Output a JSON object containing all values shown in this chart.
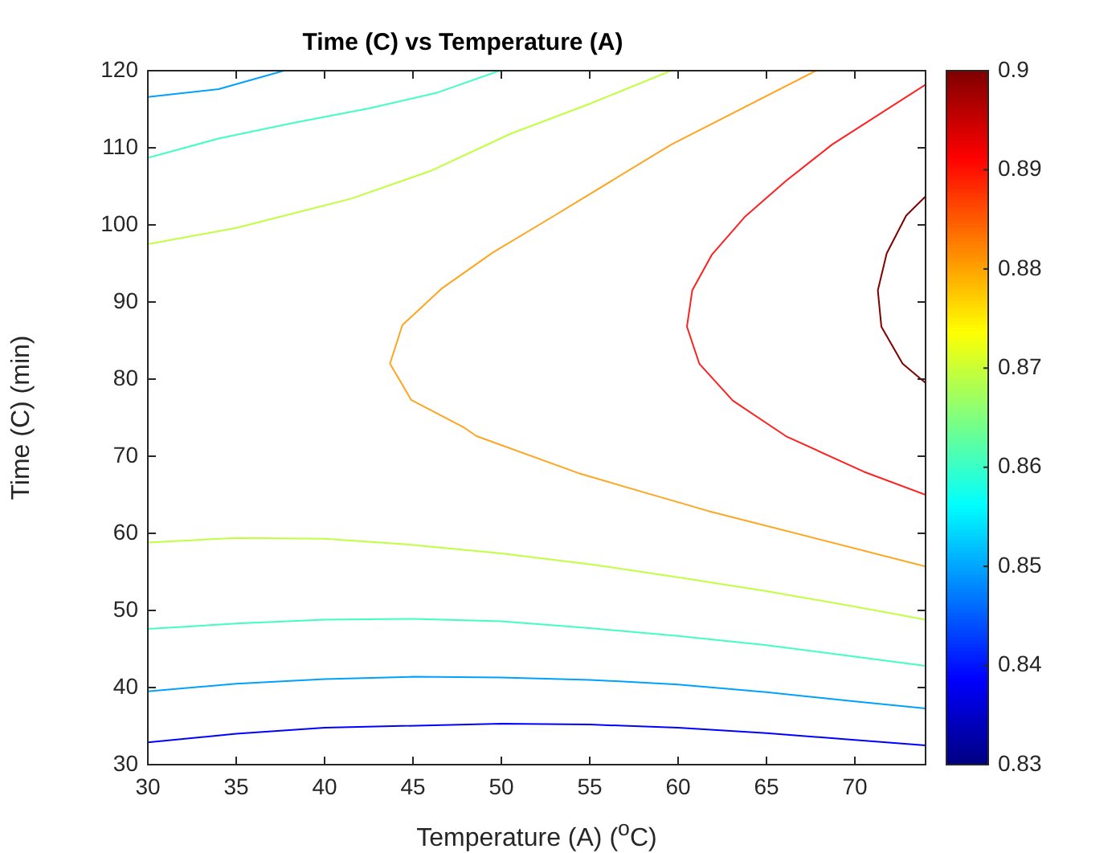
{
  "chart_data": {
    "type": "line",
    "title": "Time (C) vs Temperature (A)",
    "xlabel": "Temperature (A) ($^{o}$C)",
    "ylabel": "Time (C) (min)",
    "xlim": [
      30,
      74
    ],
    "xticks": [
      30,
      35,
      40,
      45,
      50,
      55,
      60,
      65,
      70
    ],
    "ylim": [
      30,
      120
    ],
    "yticks": [
      30,
      40,
      50,
      60,
      70,
      80,
      90,
      100,
      110,
      120
    ],
    "clim": [
      0.83,
      0.9
    ],
    "cticks": [
      0.83,
      0.84,
      0.85,
      0.86,
      0.87,
      0.88,
      0.89,
      0.9
    ],
    "grid": false,
    "legend": false,
    "marker": "none",
    "series": [
      {
        "color": "#0000ff",
        "x": [
          30,
          35,
          40,
          50,
          55,
          60,
          65,
          70,
          74
        ],
        "values": [
          32.9,
          34.0,
          34.8,
          35.3,
          35.2,
          34.8,
          34.1,
          33.2,
          32.5
        ]
      },
      {
        "color": "#00a0ff",
        "x": [
          30,
          35,
          40,
          45,
          50,
          55,
          60,
          65,
          70,
          74
        ],
        "values": [
          39.5,
          40.5,
          41.1,
          41.4,
          41.3,
          41.0,
          40.4,
          39.4,
          38.2,
          37.3
        ]
      },
      {
        "color": "#00a0ff",
        "x": [
          30,
          34,
          37.7
        ],
        "values": [
          116.6,
          117.6,
          120
        ]
      },
      {
        "color": "#40ffc0",
        "x": [
          30,
          35,
          40,
          45,
          50,
          55,
          60,
          65,
          70,
          74
        ],
        "values": [
          47.6,
          48.3,
          48.8,
          48.9,
          48.6,
          47.7,
          46.7,
          45.5,
          44.0,
          42.8
        ]
      },
      {
        "color": "#40ffc0",
        "x": [
          30,
          34,
          38.4,
          42.5,
          46.3,
          49.9
        ],
        "values": [
          108.7,
          111.2,
          113.3,
          115.1,
          117.1,
          120
        ]
      },
      {
        "color": "#c0ff40",
        "x": [
          30,
          35,
          40,
          45,
          50,
          55,
          60,
          65,
          70,
          74
        ],
        "values": [
          58.8,
          59.4,
          59.3,
          58.5,
          57.4,
          56.0,
          54.3,
          52.5,
          50.5,
          48.8
        ]
      },
      {
        "color": "#c0ff40",
        "x": [
          30,
          35,
          41.5,
          46,
          50.5,
          55,
          59.6
        ],
        "values": [
          97.5,
          99.6,
          103.4,
          107.0,
          111.8,
          115.7,
          120
        ]
      },
      {
        "color": "#ffa520",
        "x": [
          67.8,
          59.6,
          53,
          49.5,
          46.6,
          44.4,
          43.7,
          44.9,
          47.9,
          48.6,
          54.5,
          61.7,
          74
        ],
        "values": [
          120,
          110.4,
          101.2,
          96.4,
          91.7,
          87.0,
          82.0,
          77.3,
          73.7,
          72.6,
          67.7,
          62.9,
          55.7
        ]
      },
      {
        "color": "#ff2020",
        "x": [
          74,
          68.7,
          66.1,
          63.8,
          61.9,
          60.8,
          60.5,
          61.2,
          63.1,
          66.1,
          70.5,
          74
        ],
        "values": [
          118.2,
          110.4,
          105.7,
          101.1,
          96.1,
          91.5,
          86.8,
          82.0,
          77.2,
          72.6,
          68.0,
          65.0
        ]
      },
      {
        "color": "#800000",
        "x": [
          74,
          72.9,
          71.8,
          71.3,
          71.5,
          72.7,
          74
        ],
        "values": [
          103.7,
          101.2,
          96.3,
          91.5,
          86.8,
          82.0,
          79.5
        ]
      }
    ]
  }
}
